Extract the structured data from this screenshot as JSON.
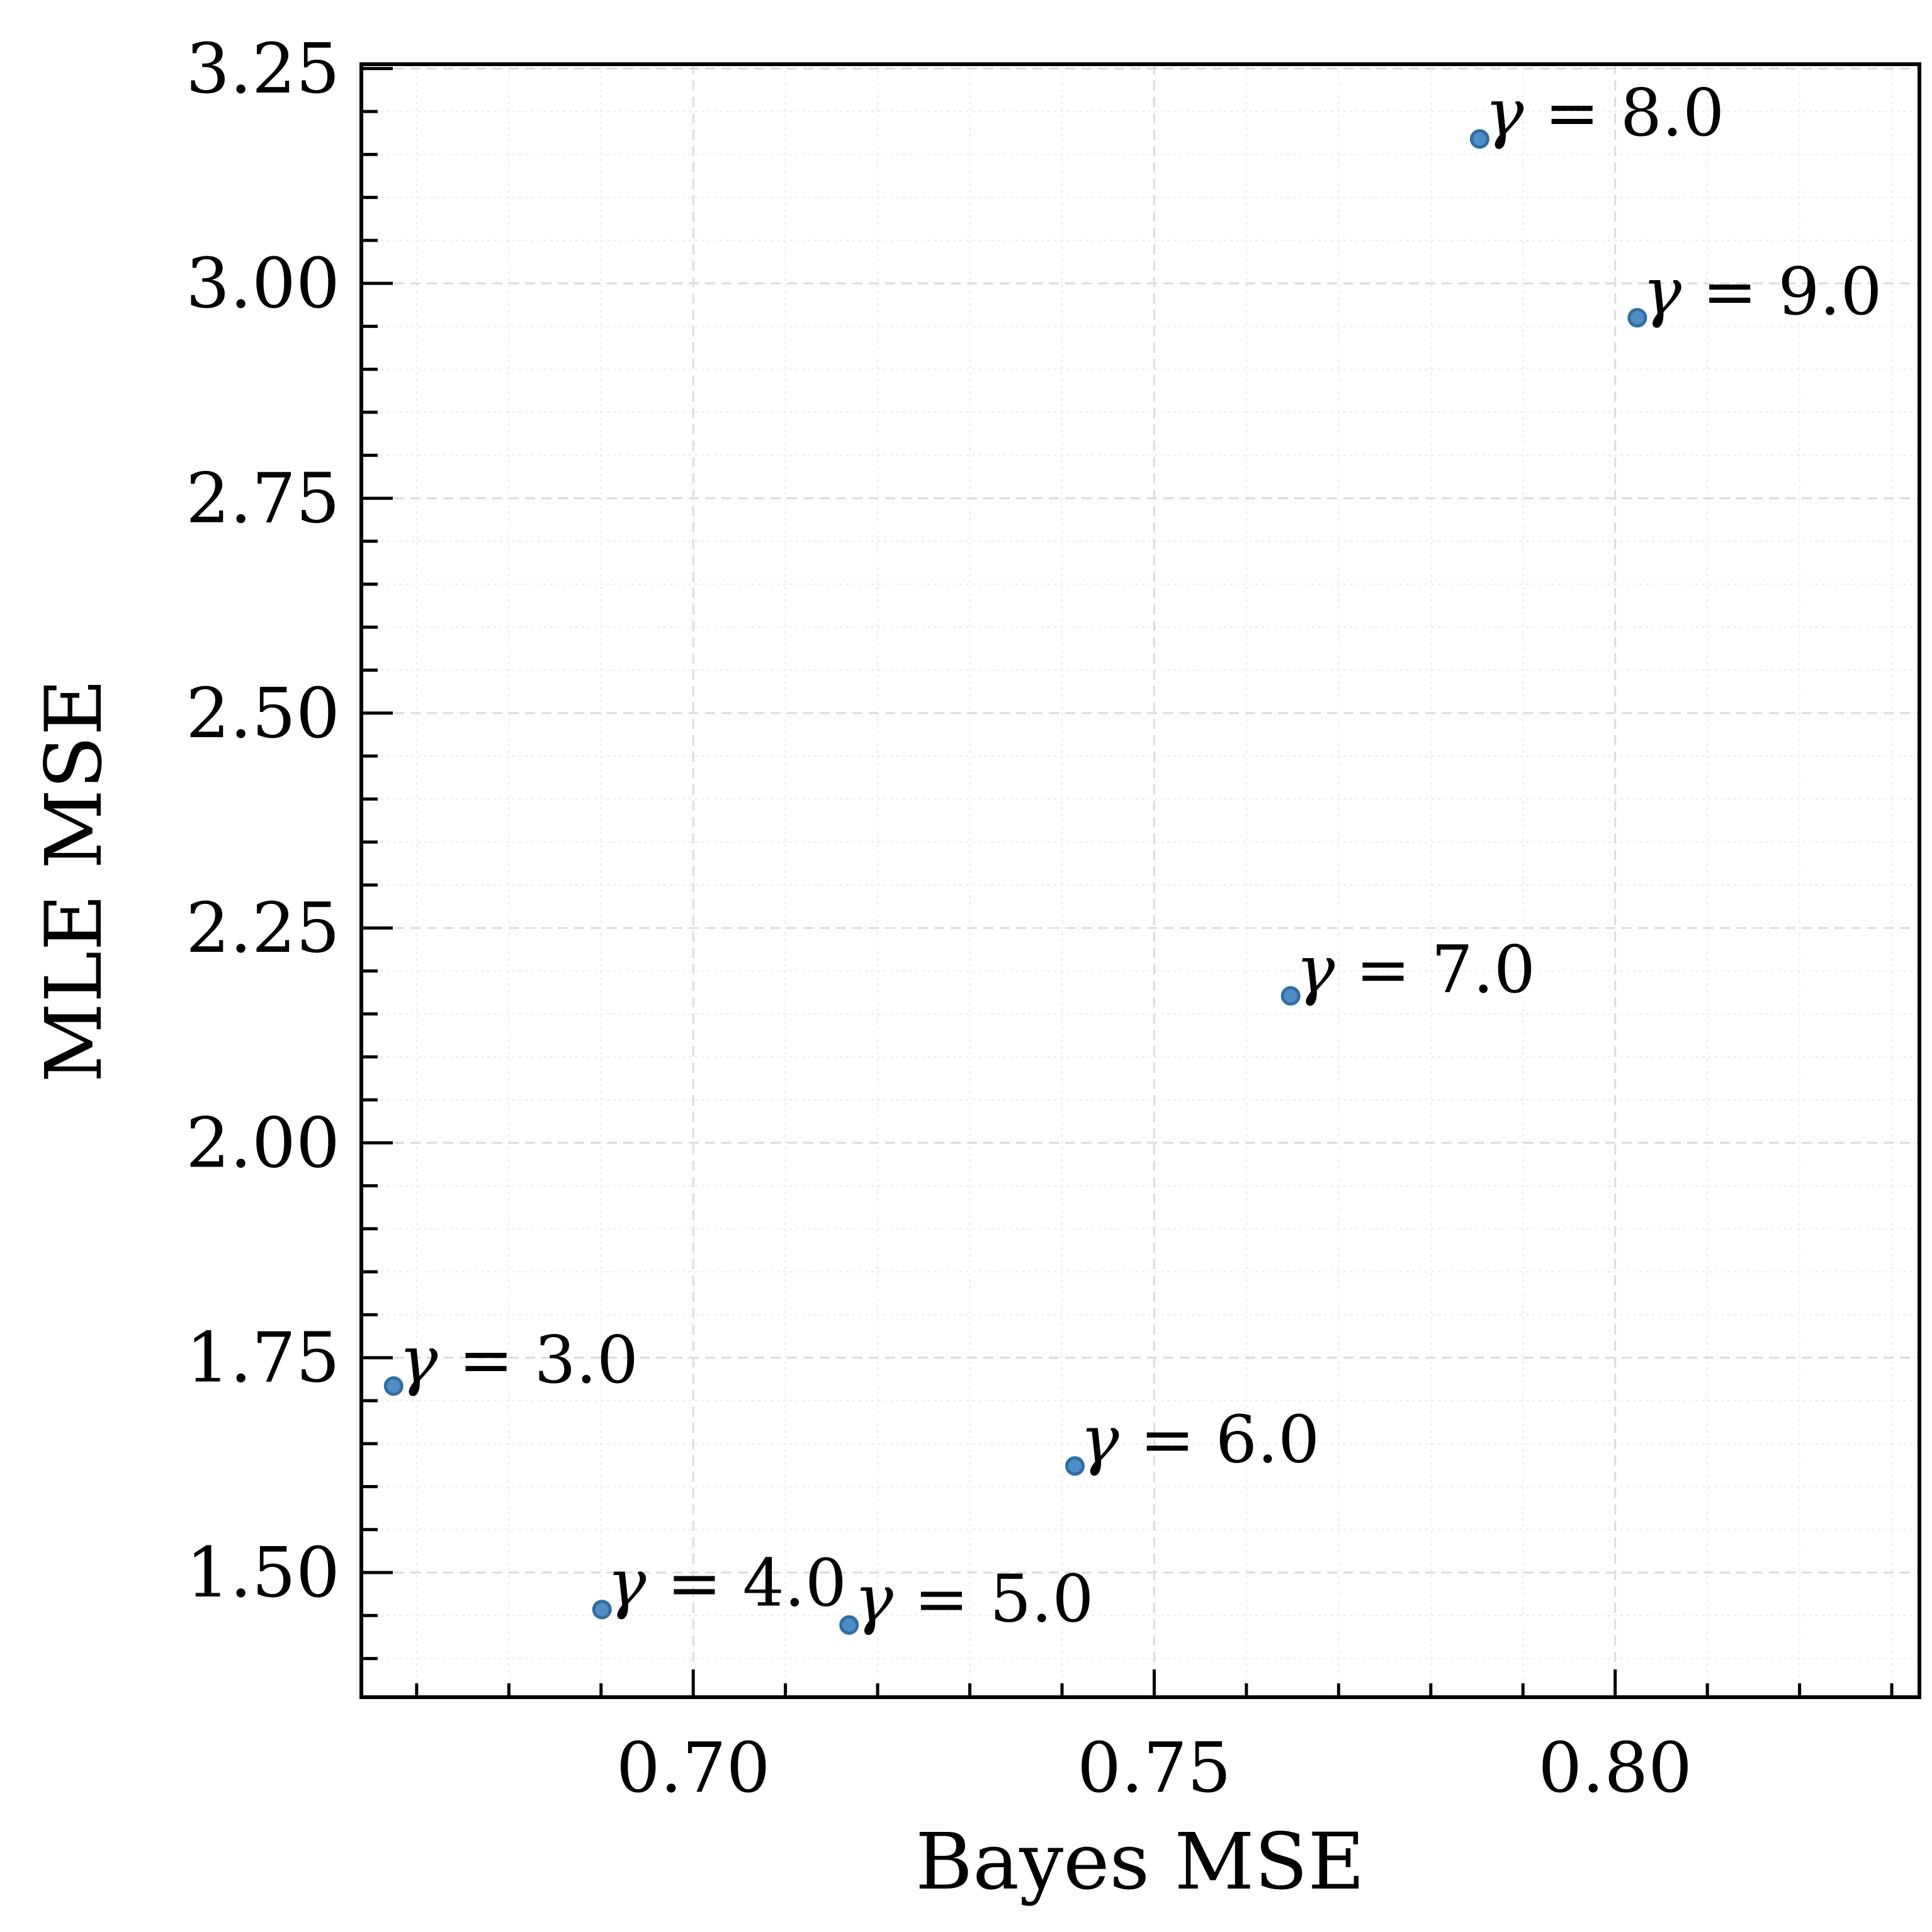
{
  "chart_data": {
    "type": "scatter",
    "title": "",
    "xlabel": "Bayes MSE",
    "ylabel": "MLE MSE",
    "xlim": [
      0.664,
      0.833
    ],
    "ylim": [
      1.355,
      3.255
    ],
    "grid": true,
    "xticks": [
      0.7,
      0.75,
      0.8
    ],
    "xtick_labels": [
      "0.70",
      "0.75",
      "0.80"
    ],
    "yticks": [
      1.5,
      1.75,
      2.0,
      2.25,
      2.5,
      2.75,
      3.0,
      3.25
    ],
    "ytick_labels": [
      "1.50",
      "1.75",
      "2.00",
      "2.25",
      "2.50",
      "2.75",
      "3.00",
      "3.25"
    ],
    "points": [
      {
        "x": 0.6675,
        "y": 1.717,
        "label": "γ = 3.0"
      },
      {
        "x": 0.6901,
        "y": 1.457,
        "label": "γ = 4.0"
      },
      {
        "x": 0.7169,
        "y": 1.439,
        "label": "γ = 5.0"
      },
      {
        "x": 0.7414,
        "y": 1.624,
        "label": "γ = 6.0"
      },
      {
        "x": 0.7648,
        "y": 2.171,
        "label": "γ = 7.0"
      },
      {
        "x": 0.7853,
        "y": 3.168,
        "label": "γ = 8.0"
      },
      {
        "x": 0.8024,
        "y": 2.96,
        "label": "γ = 9.0"
      }
    ],
    "colors": {
      "point_fill": "#4f8ec4",
      "point_edge": "#2f6ea4"
    }
  }
}
